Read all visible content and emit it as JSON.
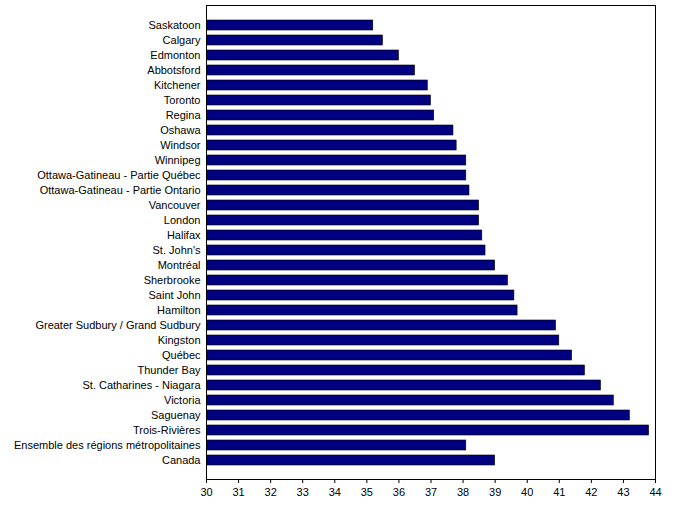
{
  "chart_data": {
    "type": "bar",
    "orientation": "horizontal",
    "categories": [
      "Saskatoon",
      "Calgary",
      "Edmonton",
      "Abbotsford",
      "Kitchener",
      "Toronto",
      "Regina",
      "Oshawa",
      "Windsor",
      "Winnipeg",
      "Ottawa-Gatineau - Partie Québec",
      "Ottawa-Gatineau - Partie Ontario",
      "Vancouver",
      "London",
      "Halifax",
      "St. John's",
      "Montréal",
      "Sherbrooke",
      "Saint John",
      "Hamilton",
      "Greater Sudbury / Grand Sudbury",
      "Kingston",
      "Québec",
      "Thunder Bay",
      "St. Catharines - Niagara",
      "Victoria",
      "Saguenay",
      "Trois-Rivières",
      "Ensemble des régions métropolitaines",
      "Canada"
    ],
    "values": [
      35.2,
      35.5,
      36.0,
      36.5,
      36.9,
      37.0,
      37.1,
      37.7,
      37.8,
      38.1,
      38.1,
      38.2,
      38.5,
      38.5,
      38.6,
      38.7,
      39.0,
      39.4,
      39.6,
      39.7,
      40.9,
      41.0,
      41.4,
      41.8,
      42.3,
      42.7,
      43.2,
      43.8,
      38.1,
      39.0
    ],
    "color": "#000080",
    "xlim": [
      30,
      44
    ],
    "xticks": [
      30,
      31,
      32,
      33,
      34,
      35,
      36,
      37,
      38,
      39,
      40,
      41,
      42,
      43,
      44
    ],
    "grid": false
  }
}
